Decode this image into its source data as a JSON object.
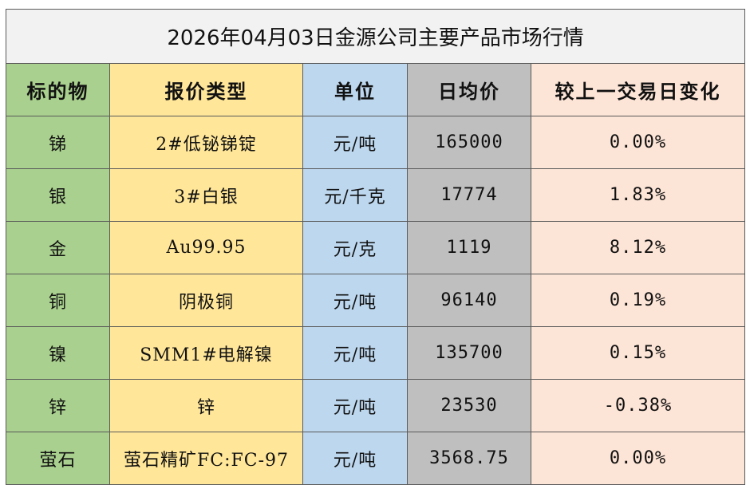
{
  "title": "2026年04月03日金源公司主要产品市场行情",
  "headers": [
    "标的物",
    "报价类型",
    "单位",
    "日均价",
    "较上一交易日变化"
  ],
  "rows": [
    {
      "item": "锑",
      "type": "2#低铋锑锭",
      "unit": "元/吨",
      "price": "165000",
      "change": "0.00%"
    },
    {
      "item": "银",
      "type": "3#白银",
      "unit": "元/千克",
      "price": "17774",
      "change": "1.83%"
    },
    {
      "item": "金",
      "type": "Au99.95",
      "unit": "元/克",
      "price": "1119",
      "change": "8.12%"
    },
    {
      "item": "铜",
      "type": "阴极铜",
      "unit": "元/吨",
      "price": "96140",
      "change": "0.19%"
    },
    {
      "item": "镍",
      "type": "SMM1#电解镍",
      "unit": "元/吨",
      "price": "135700",
      "change": "0.15%"
    },
    {
      "item": "锌",
      "type": "锌",
      "unit": "元/吨",
      "price": "23530",
      "change": "-0.38%"
    },
    {
      "item": "萤石",
      "type": "萤石精矿FC:FC-97",
      "unit": "元/吨",
      "price": "3568.75",
      "change": "0.00%"
    }
  ],
  "colors": {
    "item_col": "#a9d08e",
    "type_col": "#ffe699",
    "unit_col": "#bdd7ee",
    "price_col": "#bfbfbf",
    "change_col": "#fce4d6",
    "title_bg": "#f2f2f2"
  }
}
